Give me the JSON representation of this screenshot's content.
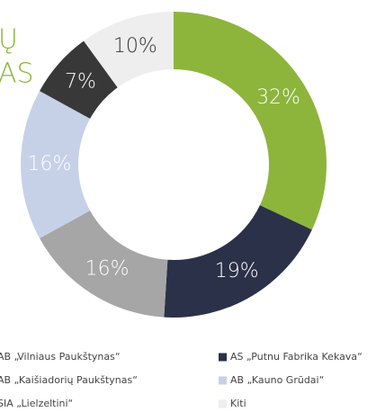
{
  "chart_data": {
    "type": "donut",
    "title_lines": [
      "Ų",
      "AS"
    ],
    "title_color": "#8db53c",
    "categories": [
      "AB „Vilniaus Paukštynas“",
      "AS „Putnu Fabrika Kekava“",
      "AB „Kaišiadorių Paukštynas“",
      "AB „Kauno Grūdai“",
      "SIA „Lielzeltini“",
      "Kiti"
    ],
    "values": [
      32,
      19,
      16,
      16,
      7,
      10
    ],
    "value_labels": [
      "32%",
      "19%",
      "16%",
      "16%",
      "7%",
      "10%"
    ],
    "colors": [
      "#8db53c",
      "#2b3148",
      "#a6a6a6",
      "#c6d1e7",
      "#383838",
      "#eeeeee"
    ],
    "legend": "bottom"
  }
}
